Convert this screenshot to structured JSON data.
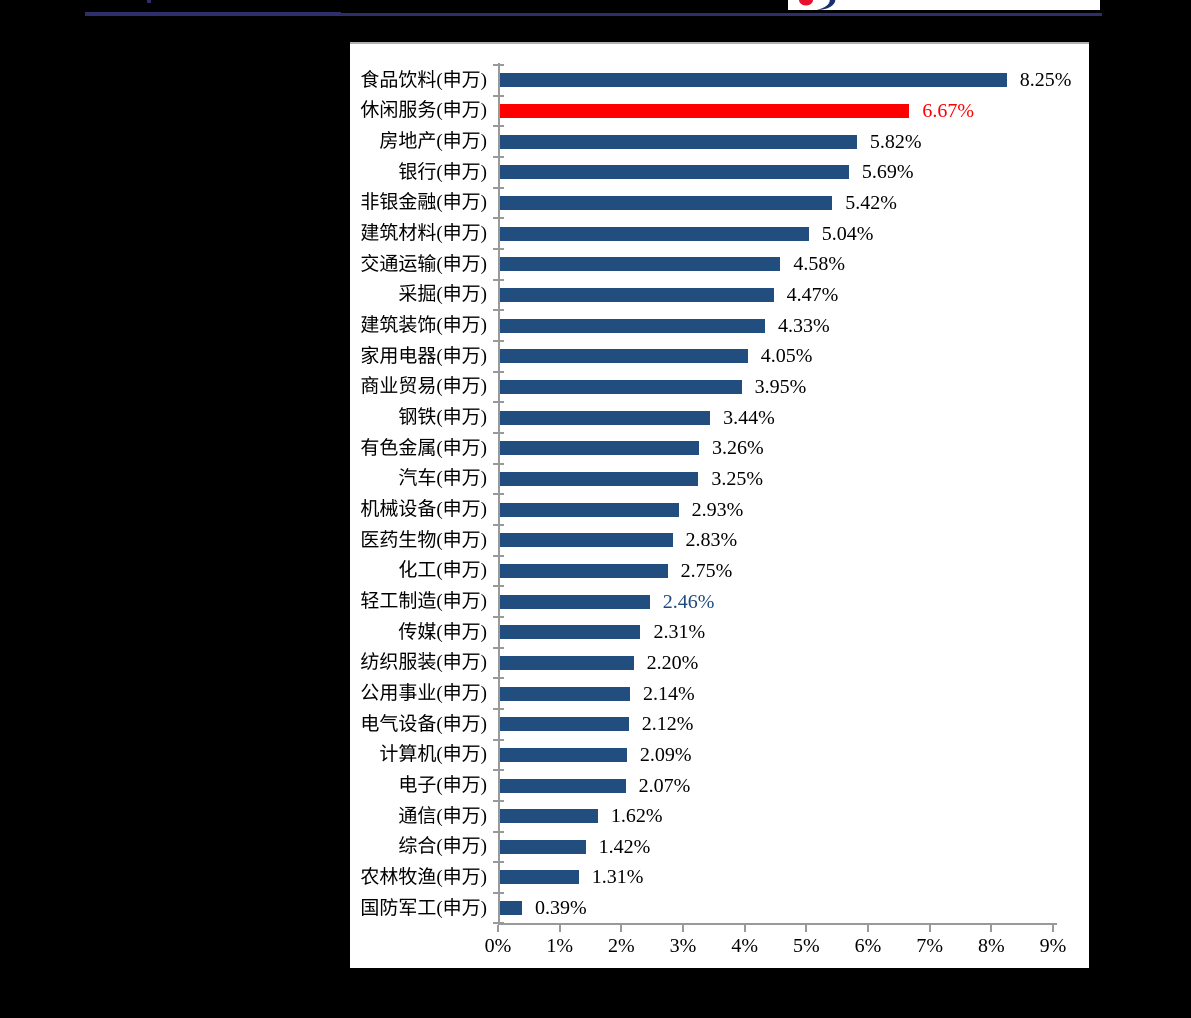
{
  "page": {
    "background": "#000000"
  },
  "header": {
    "rule_color": "#2f2e6c",
    "logo_navy": "#1c2f6b",
    "logo_red": "#e8112d"
  },
  "chart_data": {
    "type": "bar",
    "orientation": "horizontal",
    "title": "",
    "xlabel": "",
    "ylabel": "",
    "x_axis": {
      "min": 0,
      "max": 9,
      "unit": "%",
      "tick_labels": [
        "0%",
        "1%",
        "2%",
        "3%",
        "4%",
        "5%",
        "6%",
        "7%",
        "8%",
        "9%"
      ]
    },
    "grid": false,
    "legend": false,
    "axis_color": "#999999",
    "default_bar_color": "#214e7e",
    "default_value_color": "#000000",
    "bars": [
      {
        "category": "食品饮料(申万)",
        "value": 8.25,
        "display": "8.25%"
      },
      {
        "category": "休闲服务(申万)",
        "value": 6.67,
        "display": "6.67%",
        "bar_color": "#ff0000",
        "value_color": "#ff0000"
      },
      {
        "category": "房地产(申万)",
        "value": 5.82,
        "display": "5.82%"
      },
      {
        "category": "银行(申万)",
        "value": 5.69,
        "display": "5.69%"
      },
      {
        "category": "非银金融(申万)",
        "value": 5.42,
        "display": "5.42%"
      },
      {
        "category": "建筑材料(申万)",
        "value": 5.04,
        "display": "5.04%"
      },
      {
        "category": "交通运输(申万)",
        "value": 4.58,
        "display": "4.58%"
      },
      {
        "category": "采掘(申万)",
        "value": 4.47,
        "display": "4.47%"
      },
      {
        "category": "建筑装饰(申万)",
        "value": 4.33,
        "display": "4.33%"
      },
      {
        "category": "家用电器(申万)",
        "value": 4.05,
        "display": "4.05%"
      },
      {
        "category": "商业贸易(申万)",
        "value": 3.95,
        "display": "3.95%"
      },
      {
        "category": "钢铁(申万)",
        "value": 3.44,
        "display": "3.44%"
      },
      {
        "category": "有色金属(申万)",
        "value": 3.26,
        "display": "3.26%"
      },
      {
        "category": "汽车(申万)",
        "value": 3.25,
        "display": "3.25%"
      },
      {
        "category": "机械设备(申万)",
        "value": 2.93,
        "display": "2.93%"
      },
      {
        "category": "医药生物(申万)",
        "value": 2.83,
        "display": "2.83%"
      },
      {
        "category": "化工(申万)",
        "value": 2.75,
        "display": "2.75%"
      },
      {
        "category": "轻工制造(申万)",
        "value": 2.46,
        "display": "2.46%",
        "value_color": "#1f497d"
      },
      {
        "category": "传媒(申万)",
        "value": 2.31,
        "display": "2.31%"
      },
      {
        "category": "纺织服装(申万)",
        "value": 2.2,
        "display": "2.20%"
      },
      {
        "category": "公用事业(申万)",
        "value": 2.14,
        "display": "2.14%"
      },
      {
        "category": "电气设备(申万)",
        "value": 2.12,
        "display": "2.12%"
      },
      {
        "category": "计算机(申万)",
        "value": 2.09,
        "display": "2.09%"
      },
      {
        "category": "电子(申万)",
        "value": 2.07,
        "display": "2.07%"
      },
      {
        "category": "通信(申万)",
        "value": 1.62,
        "display": "1.62%"
      },
      {
        "category": "综合(申万)",
        "value": 1.42,
        "display": "1.42%"
      },
      {
        "category": "农林牧渔(申万)",
        "value": 1.31,
        "display": "1.31%"
      },
      {
        "category": "国防军工(申万)",
        "value": 0.39,
        "display": "0.39%"
      }
    ]
  }
}
